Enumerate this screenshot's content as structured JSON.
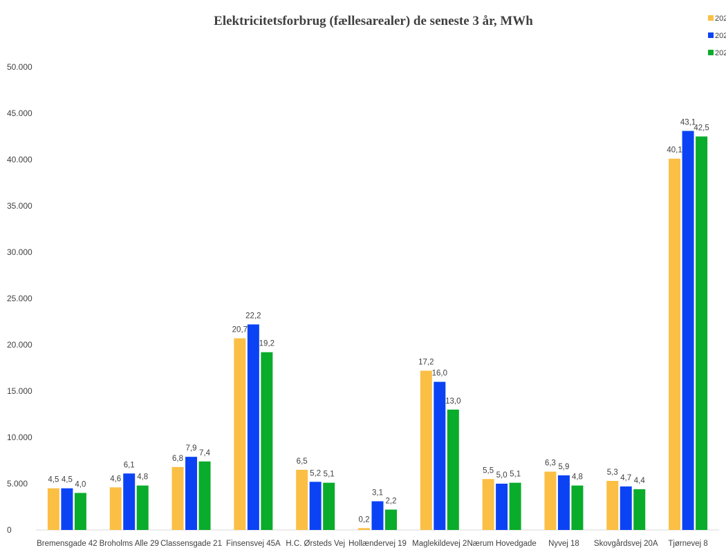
{
  "chart_data": {
    "type": "bar",
    "title": "Elektricitetsforbrug (fællesarealer) de seneste 3 år, MWh",
    "xlabel": "",
    "ylabel": "",
    "ylim": [
      0,
      50000
    ],
    "yticks": [
      0,
      5000,
      10000,
      15000,
      20000,
      25000,
      30000,
      35000,
      40000,
      45000,
      50000
    ],
    "ytick_labels": [
      "0",
      "5.000",
      "10.000",
      "15.000",
      "20.000",
      "25.000",
      "30.000",
      "35.000",
      "40.000",
      "45.000",
      "50.000"
    ],
    "grid": false,
    "legend_position": "top-right",
    "categories": [
      "Bremensgade 42",
      "Broholms Alle 29",
      "Classensgade 21",
      "Finsensvej 45A",
      "H.C. Ørsteds Vej",
      "Hollændervej 19",
      "Maglekildevej 2",
      "Nærum Hovedgade",
      "Nyvej 18",
      "Skovgårdsvej 20A",
      "Tjørnevej 8"
    ],
    "series": [
      {
        "name": "202",
        "color": "#fbbf45",
        "values": [
          4500,
          4600,
          6800,
          20700,
          6500,
          200,
          17200,
          5500,
          6300,
          5300,
          40100
        ],
        "labels": [
          "4,5",
          "4,6",
          "6,8",
          "20,7",
          "6,5",
          "0,2",
          "17,2",
          "5,5",
          "6,3",
          "5,3",
          "40,1"
        ]
      },
      {
        "name": "202",
        "color": "#0b43f4",
        "values": [
          4500,
          6100,
          7900,
          22200,
          5200,
          3100,
          16000,
          5000,
          5900,
          4700,
          43100
        ],
        "labels": [
          "4,5",
          "6,1",
          "7,9",
          "22,2",
          "5,2",
          "3,1",
          "16,0",
          "5,0",
          "5,9",
          "4,7",
          "43,1"
        ]
      },
      {
        "name": "202",
        "color": "#0aac2b",
        "values": [
          4000,
          4800,
          7400,
          19200,
          5100,
          2200,
          13000,
          5100,
          4800,
          4400,
          42500
        ],
        "labels": [
          "4,0",
          "4,8",
          "7,4",
          "19,2",
          "5,1",
          "2,2",
          "13,0",
          "5,1",
          "4,8",
          "4,4",
          "42,5"
        ]
      }
    ]
  }
}
